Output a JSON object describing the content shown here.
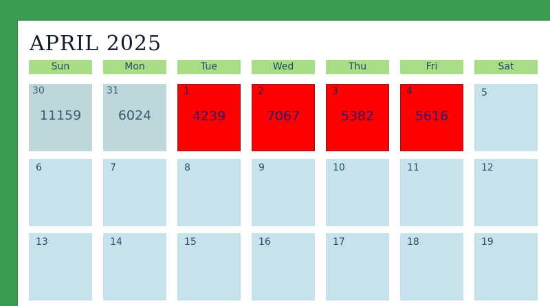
{
  "calendar": {
    "title": "APRIL 2025",
    "weekdays": [
      "Sun",
      "Mon",
      "Tue",
      "Wed",
      "Thu",
      "Fri",
      "Sat"
    ],
    "colors": {
      "background": "#3a9c51",
      "header": "#a8dc86",
      "day_cell": "#c8e2eb",
      "prev_month_cell": "#bed5da",
      "highlight_cell": "#ff0000"
    },
    "weeks": [
      [
        {
          "day": "30",
          "value": "11159",
          "state": "prev"
        },
        {
          "day": "31",
          "value": "6024",
          "state": "prev"
        },
        {
          "day": "1",
          "value": "4239",
          "state": "highlight"
        },
        {
          "day": "2",
          "value": "7067",
          "state": "highlight"
        },
        {
          "day": "3",
          "value": "5382",
          "state": "highlight"
        },
        {
          "day": "4",
          "value": "5616",
          "state": "highlight"
        },
        {
          "day": "5",
          "value": "",
          "state": "normal"
        }
      ],
      [
        {
          "day": "6",
          "value": "",
          "state": "normal"
        },
        {
          "day": "7",
          "value": "",
          "state": "normal"
        },
        {
          "day": "8",
          "value": "",
          "state": "normal"
        },
        {
          "day": "9",
          "value": "",
          "state": "normal"
        },
        {
          "day": "10",
          "value": "",
          "state": "normal"
        },
        {
          "day": "11",
          "value": "",
          "state": "normal"
        },
        {
          "day": "12",
          "value": "",
          "state": "normal"
        }
      ],
      [
        {
          "day": "13",
          "value": "",
          "state": "normal"
        },
        {
          "day": "14",
          "value": "",
          "state": "normal"
        },
        {
          "day": "15",
          "value": "",
          "state": "normal"
        },
        {
          "day": "16",
          "value": "",
          "state": "normal"
        },
        {
          "day": "17",
          "value": "",
          "state": "normal"
        },
        {
          "day": "18",
          "value": "",
          "state": "normal"
        },
        {
          "day": "19",
          "value": "",
          "state": "normal"
        }
      ]
    ]
  }
}
